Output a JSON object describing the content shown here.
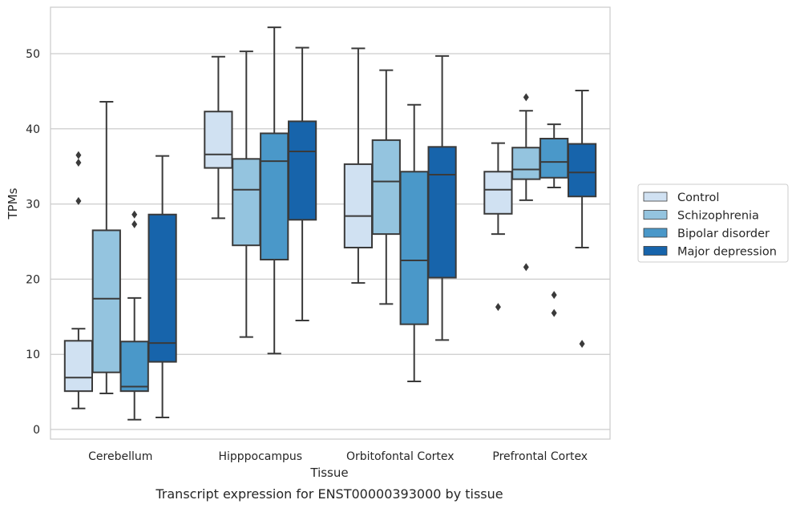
{
  "chart_data": {
    "type": "box",
    "title": "",
    "caption": "Transcript expression for ENST00000393000 by tissue",
    "xlabel": "Tissue",
    "ylabel": "TPMs",
    "ylim": [
      -1,
      56
    ],
    "yticks": [
      0,
      10,
      20,
      30,
      40,
      50
    ],
    "grid": "horizontal",
    "legend_position": "right",
    "categories": [
      "Cerebellum",
      "Hipppocampus",
      "Orbitofontal Cortex",
      "Prefrontal Cortex"
    ],
    "series": [
      {
        "name": "Control",
        "color": "#d0e1f2",
        "boxes": [
          {
            "whislo": 2.8,
            "q1": 5.1,
            "med": 6.9,
            "q3": 11.8,
            "whishi": 13.4,
            "fliers": [
              30.4,
              35.5,
              36.5
            ]
          },
          {
            "whislo": 28.1,
            "q1": 34.8,
            "med": 36.6,
            "q3": 42.3,
            "whishi": 49.6,
            "fliers": []
          },
          {
            "whislo": 19.5,
            "q1": 24.2,
            "med": 28.4,
            "q3": 35.3,
            "whishi": 50.7,
            "fliers": []
          },
          {
            "whislo": 26.0,
            "q1": 28.7,
            "med": 31.9,
            "q3": 34.3,
            "whishi": 38.1,
            "fliers": [
              16.3
            ]
          }
        ]
      },
      {
        "name": "Schizophrenia",
        "color": "#94c4df",
        "boxes": [
          {
            "whislo": 4.8,
            "q1": 7.6,
            "med": 17.4,
            "q3": 26.5,
            "whishi": 43.6,
            "fliers": []
          },
          {
            "whislo": 12.3,
            "q1": 24.5,
            "med": 31.9,
            "q3": 36.0,
            "whishi": 50.3,
            "fliers": []
          },
          {
            "whislo": 16.7,
            "q1": 26.0,
            "med": 33.0,
            "q3": 38.5,
            "whishi": 47.8,
            "fliers": []
          },
          {
            "whislo": 30.5,
            "q1": 33.3,
            "med": 34.6,
            "q3": 37.5,
            "whishi": 42.4,
            "fliers": [
              21.6,
              44.2
            ]
          }
        ]
      },
      {
        "name": "Bipolar disorder",
        "color": "#4a98c9",
        "boxes": [
          {
            "whislo": 1.3,
            "q1": 5.1,
            "med": 5.7,
            "q3": 11.7,
            "whishi": 17.5,
            "fliers": [
              27.3,
              28.6
            ]
          },
          {
            "whislo": 10.1,
            "q1": 22.6,
            "med": 35.7,
            "q3": 39.4,
            "whishi": 53.5,
            "fliers": []
          },
          {
            "whislo": 6.4,
            "q1": 14.0,
            "med": 22.5,
            "q3": 34.3,
            "whishi": 43.2,
            "fliers": []
          },
          {
            "whislo": 32.2,
            "q1": 33.5,
            "med": 35.6,
            "q3": 38.7,
            "whishi": 40.6,
            "fliers": [
              15.5,
              17.9
            ]
          }
        ]
      },
      {
        "name": "Major depression",
        "color": "#1764ab",
        "boxes": [
          {
            "whislo": 1.6,
            "q1": 9.0,
            "med": 11.5,
            "q3": 28.6,
            "whishi": 36.4,
            "fliers": []
          },
          {
            "whislo": 14.5,
            "q1": 27.9,
            "med": 37.0,
            "q3": 41.0,
            "whishi": 50.8,
            "fliers": []
          },
          {
            "whislo": 11.9,
            "q1": 20.2,
            "med": 33.9,
            "q3": 37.6,
            "whishi": 49.7,
            "fliers": []
          },
          {
            "whislo": 24.2,
            "q1": 31.0,
            "med": 34.2,
            "q3": 38.0,
            "whishi": 45.1,
            "fliers": [
              11.4
            ]
          }
        ]
      }
    ]
  }
}
